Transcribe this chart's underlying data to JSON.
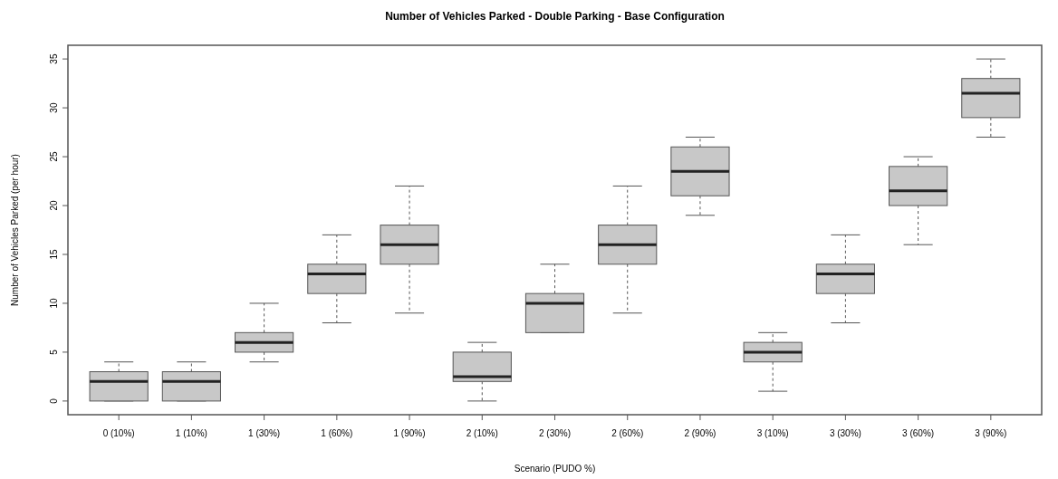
{
  "chart_data": {
    "type": "box",
    "title": "Number of Vehicles Parked - Double Parking - Base Configuration",
    "xlabel": "Scenario (PUDO %)",
    "ylabel": "Number of Vehicles Parked (per hour)",
    "categories": [
      "0 (10%)",
      "1 (10%)",
      "1 (30%)",
      "1 (60%)",
      "1 (90%)",
      "2 (10%)",
      "2 (30%)",
      "2 (60%)",
      "2 (90%)",
      "3 (10%)",
      "3 (30%)",
      "3 (60%)",
      "3 (90%)"
    ],
    "color": "#c8c8c8",
    "boxes": [
      {
        "low": 0,
        "q1": 0,
        "median": 2,
        "q3": 3,
        "high": 4
      },
      {
        "low": 0,
        "q1": 0,
        "median": 2,
        "q3": 3,
        "high": 4
      },
      {
        "low": 4,
        "q1": 5,
        "median": 6,
        "q3": 7,
        "high": 10
      },
      {
        "low": 8,
        "q1": 11,
        "median": 13,
        "q3": 14,
        "high": 17
      },
      {
        "low": 9,
        "q1": 14,
        "median": 16,
        "q3": 18,
        "high": 22
      },
      {
        "low": 0,
        "q1": 2,
        "median": 2.5,
        "q3": 5,
        "high": 6
      },
      {
        "low": 7,
        "q1": 7,
        "median": 10,
        "q3": 11,
        "high": 14
      },
      {
        "low": 9,
        "q1": 14,
        "median": 16,
        "q3": 18,
        "high": 22
      },
      {
        "low": 19,
        "q1": 21,
        "median": 23.5,
        "q3": 26,
        "high": 27
      },
      {
        "low": 1,
        "q1": 4,
        "median": 5,
        "q3": 6,
        "high": 7
      },
      {
        "low": 8,
        "q1": 11,
        "median": 13,
        "q3": 14,
        "high": 17
      },
      {
        "low": 16,
        "q1": 20,
        "median": 21.5,
        "q3": 24,
        "high": 25
      },
      {
        "low": 27,
        "q1": 29,
        "median": 31.5,
        "q3": 33,
        "high": 35
      }
    ],
    "ylim": [
      -1.4,
      36.4
    ],
    "yticks": [
      0,
      5,
      10,
      15,
      20,
      25,
      30,
      35
    ],
    "grid": false,
    "line_style": "dashed"
  }
}
